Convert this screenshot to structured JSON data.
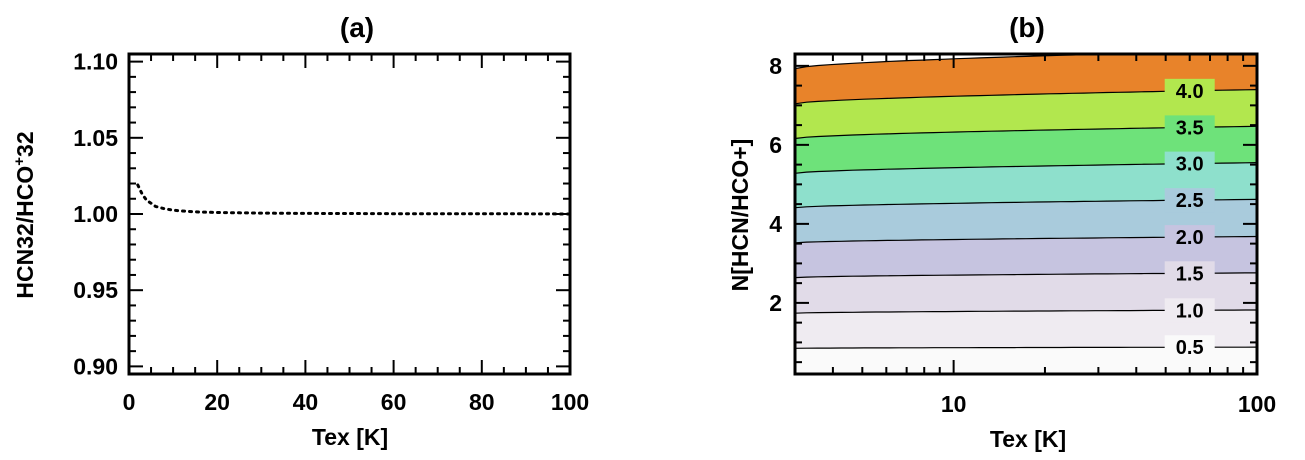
{
  "chart_data": [
    {
      "type": "line",
      "title": "(a)",
      "xlabel": "Tex [K]",
      "ylabel": "HCN32/HCO",
      "ylabel_sup": "+",
      "ylabel_tail": "32",
      "xlim": [
        0,
        100
      ],
      "ylim": [
        0.895,
        1.105
      ],
      "xticks": [
        0,
        20,
        40,
        60,
        80,
        100
      ],
      "xtick_labels": [
        "0",
        "20",
        "40",
        "60",
        "80",
        "100"
      ],
      "yticks": [
        0.9,
        0.95,
        1.0,
        1.05,
        1.1
      ],
      "ytick_labels": [
        "0.90",
        "0.95",
        "1.00",
        "1.05",
        "1.10"
      ],
      "grid": false,
      "series": [
        {
          "line_style": "dotted",
          "color": "#000000",
          "x": [
            2,
            3,
            4,
            5,
            6,
            8,
            10,
            13,
            16,
            20,
            25,
            30,
            40,
            50,
            60,
            70,
            80,
            90,
            100
          ],
          "y": [
            1.019,
            1.013,
            1.009,
            1.007,
            1.005,
            1.0035,
            1.0025,
            1.0018,
            1.0013,
            1.001,
            1.0008,
            1.0006,
            1.0004,
            1.0003,
            1.0002,
            1.0002,
            1.0001,
            1.0001,
            1.0
          ]
        }
      ]
    },
    {
      "type": "contour",
      "title": "(b)",
      "xlabel": "Tex [K]",
      "ylabel": "N[HCN/HCO+]",
      "xscale": "log",
      "xlim": [
        3,
        100
      ],
      "ylim": [
        0.2,
        8.3
      ],
      "xtick_labels": [
        "10",
        "100"
      ],
      "xticks": [
        10,
        100
      ],
      "yticks": [
        2,
        4,
        6,
        8
      ],
      "ytick_labels": [
        "2",
        "4",
        "6",
        "8"
      ],
      "grid": false,
      "levels": [
        {
          "label": "0.5",
          "y_left": 0.85,
          "y_right": 0.88
        },
        {
          "label": "1.0",
          "y_left": 1.74,
          "y_right": 1.82
        },
        {
          "label": "1.5",
          "y_left": 2.64,
          "y_right": 2.76
        },
        {
          "label": "2.0",
          "y_left": 3.52,
          "y_right": 3.68
        },
        {
          "label": "2.5",
          "y_left": 4.41,
          "y_right": 4.62
        },
        {
          "label": "3.0",
          "y_left": 5.28,
          "y_right": 5.55
        },
        {
          "label": "3.5",
          "y_left": 6.16,
          "y_right": 6.47
        },
        {
          "label": "4.0",
          "y_left": 7.04,
          "y_right": 7.4
        },
        {
          "label": "",
          "y_left": 7.93,
          "y_right": 8.4
        }
      ],
      "band_colors": [
        "#fafafa",
        "#efebf1",
        "#e1dbe8",
        "#c6c4e0",
        "#a9cbdc",
        "#8ee0cc",
        "#6ee27a",
        "#b2e74e",
        "#e8832a"
      ]
    }
  ]
}
